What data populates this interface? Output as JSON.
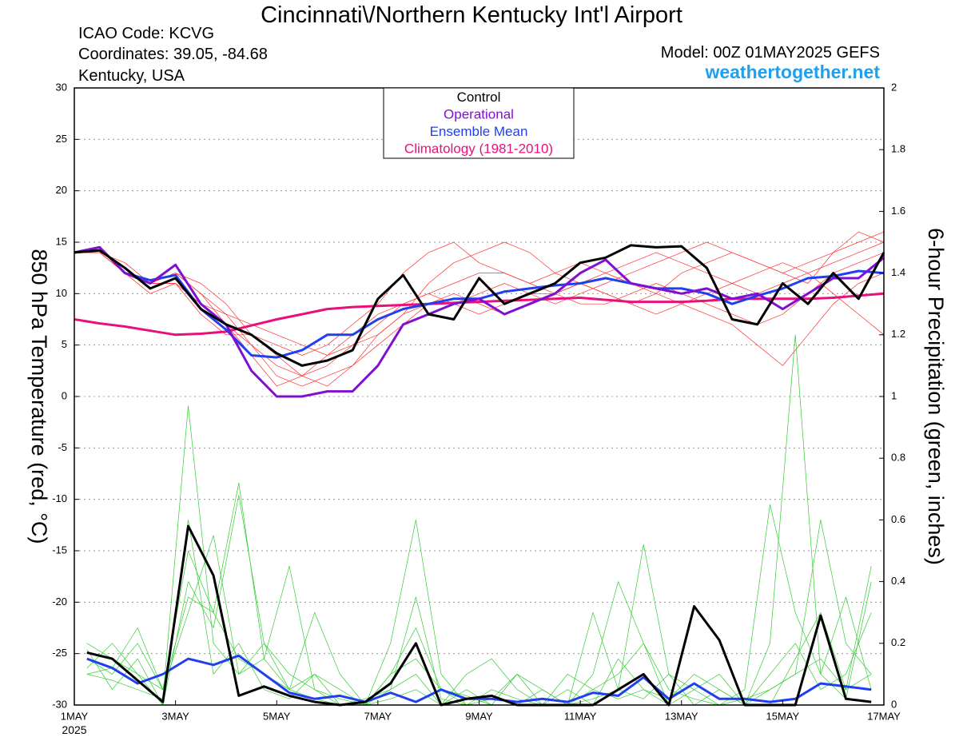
{
  "chart_data": {
    "type": "line",
    "title": "Cincinnati\\/Northern Kentucky Int'l Airport",
    "info": [
      "ICAO Code: KCVG",
      "Coordinates: 39.05, -84.68",
      "Kentucky, USA"
    ],
    "model": "Model: 00Z 01MAY2025 GEFS",
    "site": "weathertogether.net",
    "ylabel": "850 hPa Temperature (red, °C)",
    "y2label": "6-hour Precipitation (green, inches)",
    "year_label": "2025",
    "grid": true,
    "xlim": [
      0,
      384
    ],
    "xticks": [
      {
        "value": 0,
        "label": "1MAY"
      },
      {
        "value": 48,
        "label": "3MAY"
      },
      {
        "value": 96,
        "label": "5MAY"
      },
      {
        "value": 144,
        "label": "7MAY"
      },
      {
        "value": 192,
        "label": "9MAY"
      },
      {
        "value": 240,
        "label": "11MAY"
      },
      {
        "value": 288,
        "label": "13MAY"
      },
      {
        "value": 336,
        "label": "15MAY"
      },
      {
        "value": 384,
        "label": "17MAY"
      }
    ],
    "ylim": [
      -30,
      30
    ],
    "yticks": [
      30,
      25,
      20,
      15,
      10,
      5,
      0,
      -5,
      -10,
      -15,
      -20,
      -25,
      -30
    ],
    "y2lim": [
      0,
      2
    ],
    "y2ticks": [
      0,
      0.2,
      0.4,
      0.6,
      0.8,
      1,
      1.2,
      1.4,
      1.6,
      1.8,
      2
    ],
    "temperature": {
      "x": [
        0,
        12,
        24,
        36,
        48,
        60,
        72,
        84,
        96,
        108,
        120,
        132,
        144,
        156,
        168,
        180,
        192,
        204,
        216,
        228,
        240,
        252,
        264,
        276,
        288,
        300,
        312,
        324,
        336,
        348,
        360,
        372,
        384
      ],
      "member_color": "#ff3030",
      "members": [
        {
          "values": [
            14,
            14,
            12,
            11,
            11,
            9,
            7,
            5,
            3,
            2,
            3,
            5,
            7,
            9,
            10,
            9,
            8,
            9,
            10,
            10,
            9,
            9,
            10,
            11,
            10,
            9,
            8,
            7,
            8,
            10,
            12,
            13,
            14
          ]
        },
        {
          "values": [
            14,
            14.5,
            12,
            11,
            12,
            10,
            7,
            4,
            1,
            2,
            4,
            6,
            8,
            9,
            10,
            11,
            12,
            12,
            11,
            10,
            11,
            12,
            13,
            14,
            13,
            12,
            11,
            10,
            11,
            12,
            13,
            14,
            15
          ]
        },
        {
          "values": [
            14,
            14,
            12,
            10,
            11,
            8,
            6,
            6,
            5,
            4,
            5,
            7,
            9,
            12,
            14,
            15,
            13,
            12,
            11,
            12,
            13,
            12,
            11,
            10,
            9,
            8,
            7,
            5,
            3,
            6,
            9,
            11,
            12
          ]
        },
        {
          "values": [
            14,
            14,
            13,
            11,
            12,
            10,
            8,
            5,
            2,
            1,
            2,
            3,
            5,
            7,
            9,
            9,
            10,
            11,
            10,
            9,
            10,
            11,
            12,
            13,
            14,
            15,
            14,
            13,
            12,
            11,
            14,
            16,
            15
          ]
        },
        {
          "values": [
            14,
            14,
            12,
            11,
            11,
            9,
            8,
            7,
            6,
            5,
            4,
            5,
            6,
            8,
            9,
            10,
            9,
            8,
            9,
            10,
            11,
            10,
            9,
            8,
            9,
            10,
            11,
            12,
            13,
            12,
            10,
            8,
            6
          ]
        },
        {
          "values": [
            14,
            14.5,
            12,
            11,
            12,
            11,
            9,
            6,
            4,
            2,
            1,
            3,
            6,
            8,
            11,
            13,
            14,
            15,
            14,
            12,
            11,
            10,
            9,
            10,
            12,
            13,
            14,
            13,
            12,
            13,
            14,
            15,
            16
          ]
        }
      ],
      "series": [
        {
          "name": "Climatology (1981-2010)",
          "color": "#e8107a",
          "width": 3,
          "values": [
            7.5,
            7.1,
            6.8,
            6.4,
            6,
            6.1,
            6.3,
            6.9,
            7.5,
            8,
            8.5,
            8.7,
            8.8,
            8.9,
            9,
            9.1,
            9.2,
            9.3,
            9.4,
            9.5,
            9.6,
            9.4,
            9.2,
            9.2,
            9.2,
            9.3,
            9.5,
            9.5,
            9.5,
            9.5,
            9.6,
            9.8,
            10
          ]
        },
        {
          "name": "Ensemble Mean",
          "color": "#2040f0",
          "width": 3,
          "values": [
            14,
            14.5,
            12,
            11.3,
            11.8,
            8.5,
            6.5,
            4,
            3.8,
            4.5,
            6,
            6,
            7.5,
            8.5,
            9,
            9.5,
            9.5,
            10.2,
            10.5,
            10.8,
            11,
            11.5,
            11,
            10.5,
            10.5,
            10,
            9,
            9.8,
            10.5,
            11.5,
            11.7,
            12.2,
            12
          ]
        },
        {
          "name": "Operational",
          "color": "#8010d0",
          "width": 3,
          "values": [
            14,
            14.5,
            12,
            11,
            12.8,
            9,
            7,
            2.5,
            0,
            0,
            0.5,
            0.5,
            3,
            7,
            8,
            9,
            9.5,
            8,
            9,
            10,
            12,
            13.3,
            11,
            10.5,
            10,
            10.5,
            9.5,
            10,
            8.5,
            10,
            11.5,
            11.5,
            13.5
          ]
        },
        {
          "name": "Control",
          "color": "#000000",
          "width": 3,
          "values": [
            14,
            14.2,
            12.5,
            10.5,
            11.5,
            8.5,
            7,
            6,
            4.2,
            3,
            3.5,
            4.5,
            9.5,
            11.8,
            8,
            7.5,
            11.5,
            9,
            10,
            11,
            13,
            13.5,
            14.7,
            14.5,
            14.6,
            12.5,
            7.5,
            7,
            11,
            9,
            12,
            9.5,
            14
          ]
        }
      ]
    },
    "precipitation": {
      "x": [
        6,
        18,
        30,
        42,
        54,
        66,
        78,
        90,
        102,
        114,
        126,
        138,
        150,
        162,
        174,
        186,
        198,
        210,
        222,
        234,
        246,
        258,
        270,
        282,
        294,
        306,
        318,
        330,
        342,
        354,
        366,
        378
      ],
      "member_color": "#33cc33",
      "members": [
        {
          "values": [
            0.15,
            0.1,
            0.2,
            0.05,
            0.35,
            0.3,
            0.15,
            0.1,
            0.05,
            0.02,
            0,
            0,
            0.1,
            0.25,
            0.05,
            0,
            0.02,
            0.1,
            0,
            0,
            0.05,
            0.1,
            0.2,
            0.05,
            0.02,
            0,
            0,
            0,
            0.15,
            0.3,
            0.05,
            0.1
          ]
        },
        {
          "values": [
            0.1,
            0.08,
            0.05,
            0.02,
            0.97,
            0.2,
            0.1,
            0.15,
            0.05,
            0.3,
            0.1,
            0,
            0.02,
            0.05,
            0,
            0.1,
            0.15,
            0.05,
            0,
            0,
            0.3,
            0.05,
            0.02,
            0.1,
            0,
            0.05,
            0,
            0.2,
            1.2,
            0.1,
            0.02,
            0.4
          ]
        },
        {
          "values": [
            0.2,
            0.15,
            0.1,
            0,
            0.4,
            0.25,
            0.68,
            0.2,
            0.05,
            0.1,
            0,
            0,
            0.05,
            0.35,
            0.02,
            0,
            0,
            0,
            0.05,
            0,
            0.1,
            0.4,
            0.2,
            0,
            0.05,
            0.1,
            0,
            0.05,
            0.1,
            0.6,
            0.2,
            0.1
          ]
        },
        {
          "values": [
            0.12,
            0.2,
            0.1,
            0.05,
            0.5,
            0.3,
            0.72,
            0.15,
            0.45,
            0.05,
            0,
            0.02,
            0.05,
            0.1,
            0,
            0.05,
            0,
            0,
            0,
            0.1,
            0.05,
            0.02,
            0.05,
            0,
            0,
            0,
            0.05,
            0.65,
            0.3,
            0.1,
            0.35,
            0.05
          ]
        },
        {
          "values": [
            0.18,
            0.05,
            0.15,
            0,
            0.6,
            0.1,
            0.2,
            0.05,
            0.02,
            0.1,
            0.05,
            0,
            0.2,
            0.6,
            0.1,
            0,
            0.05,
            0.02,
            0,
            0.05,
            0,
            0.15,
            0.05,
            0.02,
            0.1,
            0.05,
            0,
            0.1,
            0.2,
            0.05,
            0.1,
            0.3
          ]
        },
        {
          "values": [
            0.1,
            0.12,
            0.25,
            0.05,
            0.3,
            0.55,
            0.1,
            0.2,
            0.1,
            0.05,
            0.02,
            0,
            0.1,
            0.15,
            0.05,
            0.03,
            0,
            0.1,
            0.05,
            0,
            0.02,
            0.05,
            0.52,
            0.1,
            0.05,
            0,
            0.02,
            0.05,
            0.1,
            0.15,
            0.05,
            0.45
          ]
        }
      ],
      "series": [
        {
          "color": "#2040f0",
          "width": 3,
          "values": [
            0.15,
            0.12,
            0.07,
            0.1,
            0.15,
            0.13,
            0.16,
            0.1,
            0.04,
            0.02,
            0.03,
            0.01,
            0.04,
            0.01,
            0.05,
            0.02,
            0.02,
            0.01,
            0.02,
            0.01,
            0.04,
            0.03,
            0.09,
            0.02,
            0.07,
            0.02,
            0.02,
            0.01,
            0.02,
            0.07,
            0.06,
            0.05
          ]
        },
        {
          "color": "#000000",
          "width": 3,
          "values": [
            0.17,
            0.15,
            0.08,
            0.01,
            0.58,
            0.42,
            0.03,
            0.06,
            0.03,
            0.01,
            0,
            0.01,
            0.07,
            0.2,
            0,
            0.02,
            0.03,
            0,
            0,
            0,
            0,
            0.05,
            0.1,
            0,
            0.32,
            0.21,
            0,
            0,
            0,
            0.29,
            0.02,
            0.01
          ]
        }
      ]
    }
  }
}
